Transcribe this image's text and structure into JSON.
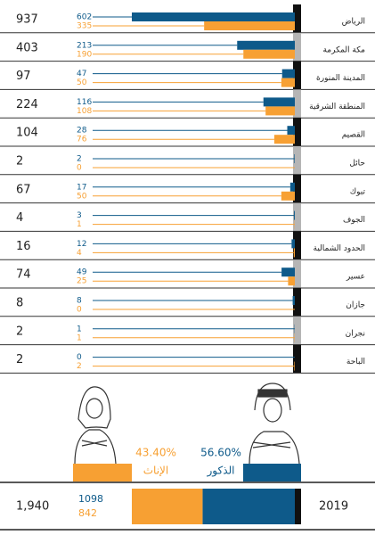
{
  "chart_data": {
    "type": "bar",
    "categories": [
      "الرياض",
      "مكة المكرمة",
      "المدينة المنورة",
      "المنطقة الشرقية",
      "القصيم",
      "حائل",
      "تبوك",
      "الجوف",
      "الحدود الشمالية",
      "عسير",
      "جازان",
      "نجران",
      "الباحة"
    ],
    "totals": [
      937,
      403,
      97,
      224,
      104,
      2,
      67,
      4,
      16,
      74,
      8,
      2,
      2
    ],
    "series": [
      {
        "name": "الذكور",
        "color": "#0e5a8a",
        "values": [
          602,
          213,
          47,
          116,
          28,
          2,
          17,
          3,
          12,
          49,
          8,
          1,
          0
        ]
      },
      {
        "name": "الإناث",
        "color": "#f7a033",
        "values": [
          335,
          190,
          50,
          108,
          76,
          0,
          50,
          1,
          4,
          25,
          0,
          1,
          2
        ]
      }
    ],
    "xlim": [
      0,
      602
    ]
  },
  "summary": {
    "total": "1,940",
    "male": 1098,
    "female": 842,
    "male_percent": "56.60%",
    "female_percent": "43.40%",
    "year": "2019"
  }
}
